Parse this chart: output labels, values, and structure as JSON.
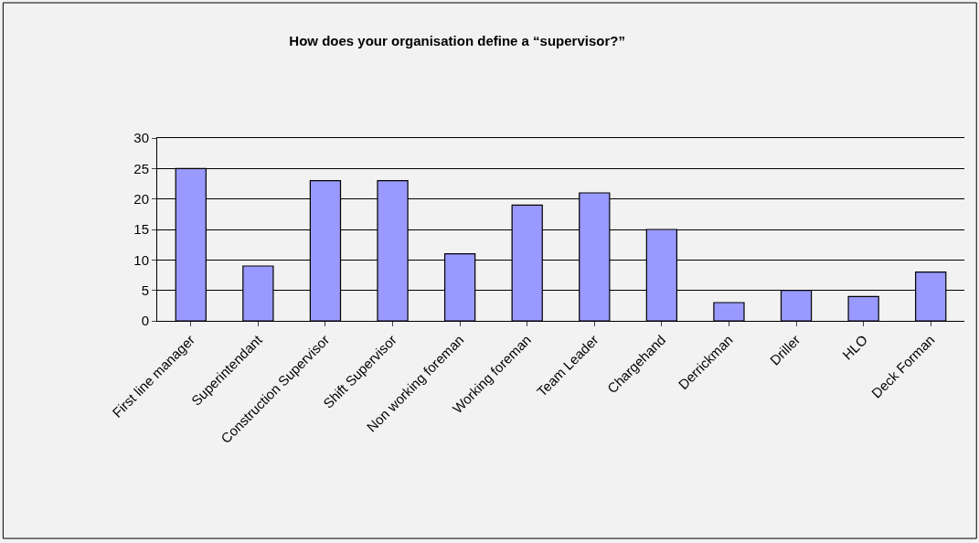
{
  "chart_data": {
    "type": "bar",
    "title": "How does your organisation define a “supervisor?”",
    "categories": [
      "First line manager",
      "Superintendant",
      "Construction Supervisor",
      "Shift Supervisor",
      "Non working foreman",
      "Working foreman",
      "Team Leader",
      "Chargehand",
      "Derrickman",
      "Driller",
      "HLO",
      "Deck Forman"
    ],
    "values": [
      25,
      9,
      23,
      23,
      11,
      19,
      21,
      15,
      3,
      5,
      4,
      8
    ],
    "color": "#9999ff",
    "ylim": [
      0,
      30
    ],
    "yticks": [
      0,
      5,
      10,
      15,
      20,
      25,
      30
    ],
    "grid": "y"
  }
}
